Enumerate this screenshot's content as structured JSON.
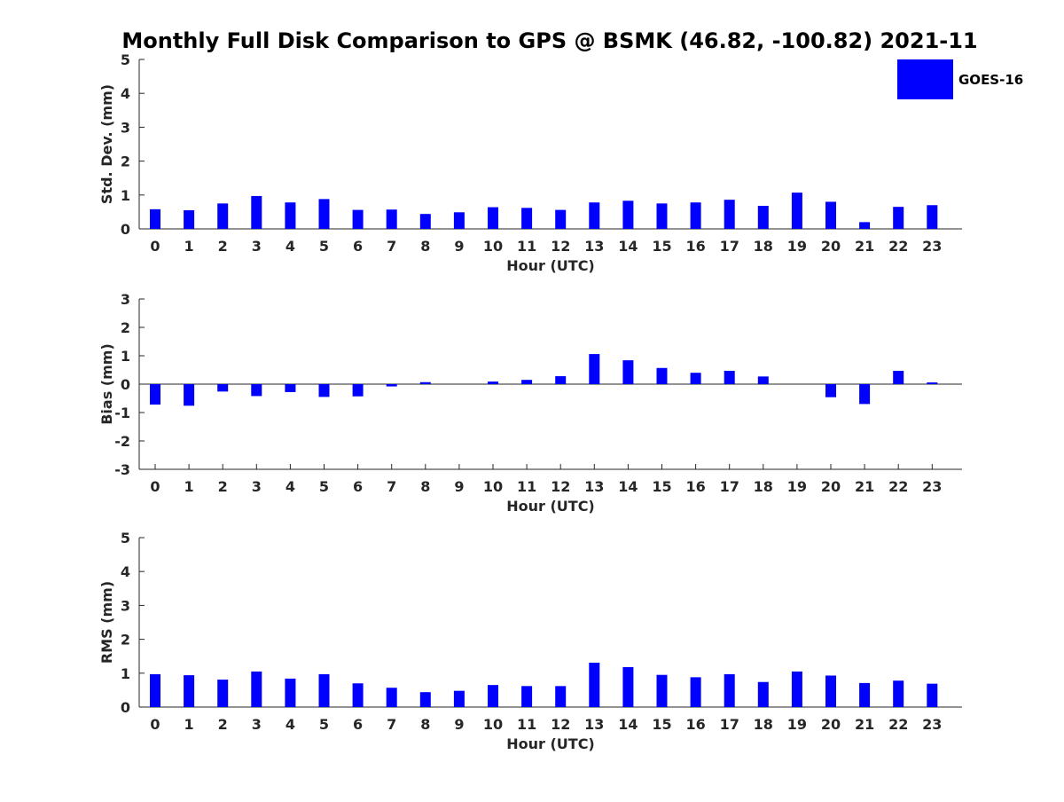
{
  "chart_data": [
    {
      "type": "bar",
      "title": "Monthly Full Disk Comparison to GPS @ BSMK (46.82, -100.82) 2021-11",
      "xlabel": "Hour (UTC)",
      "ylabel": "Std. Dev. (mm)",
      "ylim": [
        0,
        5
      ],
      "yticks": [
        "0",
        "1",
        "2",
        "3",
        "4",
        "5"
      ],
      "categories": [
        "0",
        "1",
        "2",
        "3",
        "4",
        "5",
        "6",
        "7",
        "8",
        "9",
        "10",
        "11",
        "12",
        "13",
        "14",
        "15",
        "16",
        "17",
        "18",
        "19",
        "20",
        "21",
        "22",
        "23"
      ],
      "series": [
        {
          "name": "GOES-16",
          "color": "#0000ff",
          "values": [
            0.58,
            0.55,
            0.75,
            0.97,
            0.78,
            0.88,
            0.56,
            0.57,
            0.44,
            0.49,
            0.64,
            0.62,
            0.56,
            0.78,
            0.83,
            0.75,
            0.78,
            0.86,
            0.68,
            1.07,
            0.8,
            0.2,
            0.65,
            0.7
          ]
        }
      ],
      "grid": false,
      "legend": "top-right"
    },
    {
      "type": "bar",
      "xlabel": "Hour (UTC)",
      "ylabel": "Bias (mm)",
      "ylim": [
        -3,
        3
      ],
      "yticks": [
        "-3",
        "-2",
        "-1",
        "0",
        "1",
        "2",
        "3"
      ],
      "categories": [
        "0",
        "1",
        "2",
        "3",
        "4",
        "5",
        "6",
        "7",
        "8",
        "9",
        "10",
        "11",
        "12",
        "13",
        "14",
        "15",
        "16",
        "17",
        "18",
        "19",
        "20",
        "21",
        "22",
        "23"
      ],
      "series": [
        {
          "name": "GOES-16",
          "color": "#0000ff",
          "values": [
            -0.72,
            -0.76,
            -0.26,
            -0.42,
            -0.28,
            -0.45,
            -0.43,
            -0.08,
            0.07,
            0.0,
            0.09,
            0.15,
            0.28,
            1.06,
            0.84,
            0.57,
            0.4,
            0.47,
            0.27,
            0.0,
            -0.46,
            -0.7,
            0.47,
            0.06
          ]
        }
      ],
      "grid": false,
      "zero_line": true
    },
    {
      "type": "bar",
      "xlabel": "Hour (UTC)",
      "ylabel": "RMS (mm)",
      "ylim": [
        0,
        5
      ],
      "yticks": [
        "0",
        "1",
        "2",
        "3",
        "4",
        "5"
      ],
      "categories": [
        "0",
        "1",
        "2",
        "3",
        "4",
        "5",
        "6",
        "7",
        "8",
        "9",
        "10",
        "11",
        "12",
        "13",
        "14",
        "15",
        "16",
        "17",
        "18",
        "19",
        "20",
        "21",
        "22",
        "23"
      ],
      "series": [
        {
          "name": "GOES-16",
          "color": "#0000ff",
          "values": [
            0.97,
            0.94,
            0.81,
            1.05,
            0.84,
            0.97,
            0.7,
            0.57,
            0.44,
            0.48,
            0.65,
            0.62,
            0.62,
            1.31,
            1.18,
            0.95,
            0.88,
            0.97,
            0.74,
            1.05,
            0.93,
            0.71,
            0.78,
            0.69
          ]
        }
      ],
      "grid": false
    }
  ],
  "legend": {
    "label": "GOES-16",
    "color": "#0000ff"
  }
}
